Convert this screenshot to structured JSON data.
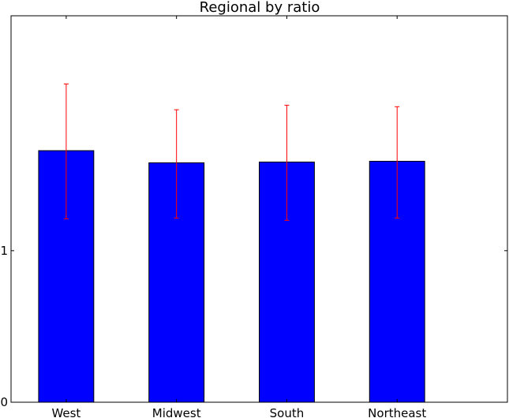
{
  "chart_data": {
    "type": "bar",
    "title": "Regional by ratio",
    "xlabel": "",
    "ylabel": "",
    "categories": [
      "West",
      "Midwest",
      "South",
      "Northeast"
    ],
    "values": [
      1.66,
      1.58,
      1.585,
      1.59
    ],
    "error_low": [
      1.21,
      1.215,
      1.2,
      1.215
    ],
    "error_high": [
      2.1,
      1.93,
      1.96,
      1.95
    ],
    "ylim": [
      0,
      2.55
    ],
    "y_ticks": [
      0,
      1
    ],
    "y_tick_labels": [
      "0",
      "1"
    ],
    "grid": false,
    "bar_color": "#0000ff",
    "error_color": "#ff0000",
    "edge_color": "#000000"
  }
}
